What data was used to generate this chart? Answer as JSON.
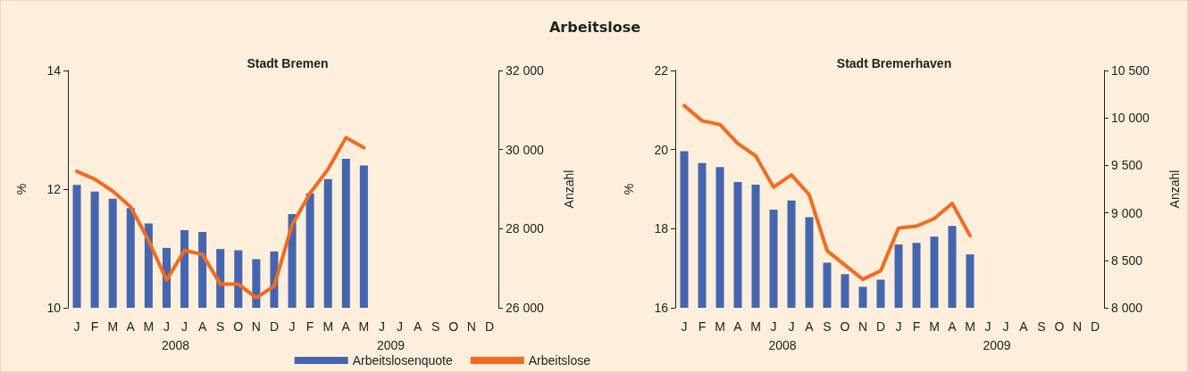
{
  "chart_data": [
    {
      "type": "bar",
      "title": "Arbeitslose",
      "subtitle": "Stadt Bremen",
      "categories": [
        "J",
        "F",
        "M",
        "A",
        "M",
        "J",
        "J",
        "A",
        "S",
        "O",
        "N",
        "D",
        "J",
        "F",
        "M",
        "A",
        "M",
        "J",
        "J",
        "A",
        "S",
        "O",
        "N",
        "D"
      ],
      "series": [
        {
          "name": "Arbeitslosenquote",
          "color": "#4565b0",
          "values": [
            12.07,
            11.96,
            11.84,
            11.68,
            11.42,
            11.01,
            11.31,
            11.28,
            10.99,
            10.97,
            10.82,
            10.95,
            11.58,
            11.93,
            12.17,
            12.51,
            12.4,
            null,
            null,
            null,
            null,
            null,
            null,
            null
          ]
        },
        {
          "name": "Arbeitslose",
          "type": "line",
          "axis": "y2",
          "color": "#f26b21",
          "values": [
            29450,
            29250,
            28950,
            28550,
            27700,
            26700,
            27450,
            27350,
            26600,
            26600,
            26250,
            26550,
            28100,
            28900,
            29500,
            30300,
            30050,
            null,
            null,
            null,
            null,
            null,
            null,
            null
          ]
        }
      ],
      "ylabel": "%",
      "y2label": "Anzahl",
      "ylim": [
        10,
        14
      ],
      "yticks": [
        10,
        12,
        14
      ],
      "y2lim": [
        26000,
        32000
      ],
      "y2ticks": [
        {
          "value": 26000,
          "label": "26 000"
        },
        {
          "value": 28000,
          "label": "28 000"
        },
        {
          "value": 30000,
          "label": "30 000"
        },
        {
          "value": 32000,
          "label": "32 000"
        }
      ],
      "marker": "none",
      "legend": "bottom",
      "annotations": [
        "2008",
        "2009"
      ]
    },
    {
      "type": "bar",
      "title": "Stadt Bremerhaven",
      "categories": [
        "J",
        "F",
        "M",
        "A",
        "M",
        "J",
        "J",
        "A",
        "S",
        "O",
        "N",
        "D",
        "J",
        "F",
        "M",
        "A",
        "M",
        "J",
        "J",
        "A",
        "S",
        "O",
        "N",
        "D"
      ],
      "series": [
        {
          "color": "#4565b0",
          "values": [
            19.96,
            19.66,
            19.56,
            19.18,
            19.11,
            18.48,
            18.71,
            18.29,
            17.14,
            16.85,
            16.53,
            16.71,
            17.6,
            17.64,
            17.8,
            18.07,
            17.35,
            null,
            null,
            null,
            null,
            null,
            null,
            null
          ]
        },
        {
          "type": "line",
          "axis": "y2",
          "color": "#f26b21",
          "values": [
            10130,
            9970,
            9930,
            9730,
            9600,
            9270,
            9400,
            9190,
            8600,
            8450,
            8300,
            8390,
            8840,
            8860,
            8940,
            9100,
            8760,
            null,
            null,
            null,
            null,
            null,
            null,
            null
          ]
        }
      ],
      "ylabel": "%",
      "y2label": "Anzahl",
      "ylim": [
        16,
        22
      ],
      "yticks": [
        16,
        18,
        20,
        22
      ],
      "y2lim": [
        8000,
        10500
      ],
      "y2ticks": [
        {
          "value": 8000,
          "label": "8 000"
        },
        {
          "value": 8500,
          "label": "8 500"
        },
        {
          "value": 9000,
          "label": "9 000"
        },
        {
          "value": 9500,
          "label": "9 500"
        },
        {
          "value": 10000,
          "label": "10 000"
        },
        {
          "value": 10500,
          "label": "10 500"
        }
      ],
      "marker": "none",
      "annotations": [
        "2008",
        "2009"
      ]
    }
  ]
}
